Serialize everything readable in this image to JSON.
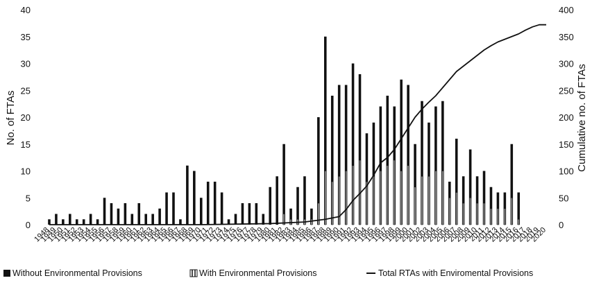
{
  "chart_data": {
    "type": "bar",
    "ylabel": "No. of FTAs",
    "y2label": "Cumulative no. of FTAs",
    "ylim": [
      0,
      40
    ],
    "y2lim": [
      0,
      400
    ],
    "yticks": [
      "0",
      "5",
      "10",
      "15",
      "20",
      "25",
      "30",
      "35",
      "40"
    ],
    "y2ticks": [
      "0",
      "50",
      "100",
      "150",
      "200",
      "250",
      "300",
      "350",
      "400"
    ],
    "categories": [
      "1948",
      "1949",
      "1950",
      "1951",
      "1952",
      "1953",
      "1954",
      "1955",
      "1956",
      "1957",
      "1958",
      "1959",
      "1960",
      "1961",
      "1962",
      "1963",
      "1964",
      "1965",
      "1966",
      "1967",
      "1968",
      "1969",
      "1970",
      "1971",
      "1972",
      "1973",
      "1974",
      "1975",
      "1976",
      "1977",
      "1978",
      "1979",
      "1980",
      "1981",
      "1982",
      "1983",
      "1984",
      "1985",
      "1986",
      "1987",
      "1988",
      "1989",
      "1990",
      "1991",
      "1992",
      "1993",
      "1994",
      "1995",
      "1996",
      "1997",
      "1998",
      "1999",
      "2000",
      "2001",
      "2002",
      "2003",
      "2004",
      "2005",
      "2006",
      "2007",
      "2008",
      "2009",
      "2010",
      "2011",
      "2012",
      "2013",
      "2014",
      "2015",
      "2016",
      "2017",
      "2018",
      "2019",
      "2020"
    ],
    "xtick_labels": [
      "1948",
      "1949",
      "1950",
      "1951",
      "1952",
      "1953",
      "1954",
      "1955",
      "1956",
      "1957",
      "1958",
      "1959",
      "1960",
      "1961",
      "1962",
      "1963",
      "1964",
      "1965",
      "1966",
      "1967",
      "1968",
      "1969",
      "1970",
      "1971",
      "1972",
      "1973",
      "1974",
      "1975",
      "1976",
      "1977",
      "1978",
      "1979",
      "1980",
      "1981",
      "1982",
      "1983",
      "1984",
      "1985",
      "1986",
      "1987",
      "1988",
      "1989",
      "1990",
      "1991",
      "1992",
      "1993",
      "1994",
      "1995",
      "1996",
      "1997",
      "1998",
      "1999",
      "2000",
      "2001",
      "2002",
      "2003",
      "2004",
      "2005",
      "2006",
      "2007",
      "2008",
      "2009",
      "2010",
      "2011",
      "2012",
      "2013",
      "2014",
      "2015",
      "2016",
      "2017",
      "2018",
      "2019",
      "2020"
    ],
    "series": [
      {
        "name": "Without Environmental Provisions",
        "color": "#111111",
        "values": [
          1,
          2,
          1,
          2,
          1,
          1,
          2,
          1,
          5,
          4,
          3,
          4,
          2,
          4,
          2,
          2,
          3,
          6,
          6,
          1,
          11,
          10,
          5,
          8,
          8,
          6,
          1,
          2,
          4,
          4,
          4,
          2,
          7,
          9,
          15,
          3,
          7,
          9,
          3,
          20,
          35,
          24,
          26,
          26,
          30,
          28,
          17,
          19,
          22,
          24,
          22,
          27,
          26,
          15,
          23,
          19,
          22,
          23,
          8,
          16,
          9,
          14,
          9,
          10,
          7,
          6,
          6,
          15,
          6,
          0,
          0,
          0,
          0
        ]
      },
      {
        "name": "With Environmental Provisions",
        "color": "#111111",
        "values": [
          0,
          0,
          0,
          0,
          0,
          0,
          0,
          0,
          0,
          0,
          0,
          0,
          0,
          0,
          0,
          0,
          0,
          0,
          0,
          0,
          0,
          0,
          0,
          0,
          0,
          0,
          0,
          0,
          0,
          0,
          0,
          0,
          0,
          0,
          2,
          1,
          1,
          1,
          1,
          4,
          10,
          8,
          9,
          10,
          11,
          12,
          8,
          9,
          10,
          11,
          12,
          10,
          11,
          7,
          9,
          9,
          10,
          10,
          5,
          6,
          4,
          5,
          4,
          4,
          3,
          3,
          3,
          5,
          1,
          0,
          0,
          0,
          0
        ]
      },
      {
        "name": "Total RTAs with Enviromental Provisions",
        "axis": "right",
        "color": "#111111",
        "x": [
          1948,
          1960,
          1970,
          1980,
          1985,
          1988,
          1990,
          1991,
          1992,
          1993,
          1994,
          1995,
          1996,
          1997,
          1998,
          1999,
          2000,
          2001,
          2002,
          2003,
          2004,
          2005,
          2006,
          2007,
          2008,
          2009,
          2010,
          2011,
          2012,
          2013,
          2014,
          2015,
          2016,
          2017,
          2018,
          2019,
          2020
        ],
        "values": [
          0,
          0,
          0,
          2,
          5,
          10,
          15,
          28,
          45,
          58,
          72,
          92,
          115,
          125,
          140,
          160,
          180,
          200,
          215,
          228,
          240,
          255,
          270,
          285,
          295,
          305,
          315,
          325,
          333,
          340,
          345,
          350,
          355,
          362,
          368,
          372,
          372
        ]
      }
    ],
    "legend": {
      "position": "bottom",
      "entries": [
        "Without Environmental Provisions",
        "With Environmental Provisions",
        "Total RTAs with Enviromental Provisions"
      ]
    },
    "grid": false
  }
}
